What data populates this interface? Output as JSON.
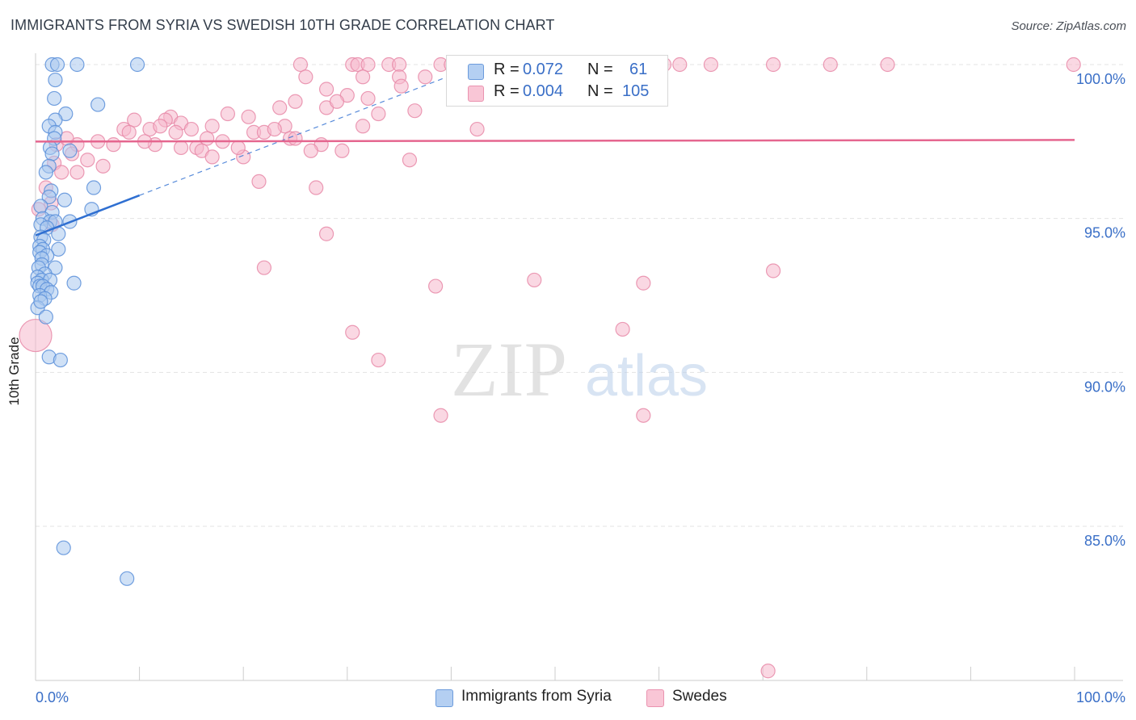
{
  "title": "IMMIGRANTS FROM SYRIA VS SWEDISH 10TH GRADE CORRELATION CHART",
  "source": "Source: ZipAtlas.com",
  "watermark": {
    "zip": "ZIP",
    "atlas": "atlas"
  },
  "legend": {
    "rows": [
      {
        "r_label": "R =",
        "r_value": "0.072",
        "n_label": "N =",
        "n_value": "61"
      },
      {
        "r_label": "R =",
        "r_value": "0.004",
        "n_label": "N =",
        "n_value": "105"
      }
    ]
  },
  "bottom_legend": {
    "syria": "Immigrants from Syria",
    "swedes": "Swedes"
  },
  "colors": {
    "syria_fill": "#a9c8ef",
    "syria_stroke": "#5b8fd9",
    "syria_line": "#2f6fd1",
    "swedes_fill": "#f6b8cc",
    "swedes_stroke": "#e889a8",
    "swedes_line": "#e5668f",
    "tick_label": "#3a6fc7",
    "grid": "#e3e3e3"
  },
  "chart_data": {
    "type": "scatter",
    "title": "IMMIGRANTS FROM SYRIA VS SWEDISH 10TH GRADE CORRELATION CHART",
    "xlabel": "",
    "ylabel": "10th Grade",
    "xlim": [
      0,
      100
    ],
    "ylim": [
      80.3,
      100.8
    ],
    "x_tick_labels": [
      "0.0%",
      "100.0%"
    ],
    "y_ticks": [
      85.0,
      90.0,
      95.0,
      100.0
    ],
    "y_tick_labels": [
      "85.0%",
      "90.0%",
      "95.0%",
      "100.0%"
    ],
    "grid": true,
    "series": [
      {
        "name": "Immigrants from Syria",
        "r": 0.072,
        "n": 61,
        "trend": {
          "x": [
            0.0,
            10.0
          ],
          "y": [
            94.45,
            95.75
          ],
          "dashed_to": [
            40.0,
            99.65
          ]
        },
        "points": [
          [
            1.6,
            100.0
          ],
          [
            2.1,
            100.0
          ],
          [
            4.0,
            100.0
          ],
          [
            9.8,
            100.0
          ],
          [
            1.9,
            99.5
          ],
          [
            1.8,
            98.9
          ],
          [
            6.0,
            98.7
          ],
          [
            2.9,
            98.4
          ],
          [
            1.9,
            98.2
          ],
          [
            1.3,
            98.0
          ],
          [
            1.9,
            97.8
          ],
          [
            1.8,
            97.6
          ],
          [
            1.4,
            97.3
          ],
          [
            1.6,
            97.1
          ],
          [
            3.3,
            97.2
          ],
          [
            1.3,
            96.7
          ],
          [
            1.0,
            96.5
          ],
          [
            5.6,
            96.0
          ],
          [
            1.5,
            95.9
          ],
          [
            1.3,
            95.7
          ],
          [
            2.8,
            95.6
          ],
          [
            0.5,
            95.4
          ],
          [
            5.4,
            95.3
          ],
          [
            1.6,
            95.2
          ],
          [
            0.7,
            95.0
          ],
          [
            1.4,
            94.9
          ],
          [
            1.9,
            94.9
          ],
          [
            3.3,
            94.9
          ],
          [
            0.5,
            94.8
          ],
          [
            1.1,
            94.7
          ],
          [
            2.2,
            94.5
          ],
          [
            0.5,
            94.4
          ],
          [
            0.8,
            94.3
          ],
          [
            0.4,
            94.1
          ],
          [
            0.7,
            94.0
          ],
          [
            2.2,
            94.0
          ],
          [
            0.4,
            93.9
          ],
          [
            1.1,
            93.8
          ],
          [
            0.6,
            93.7
          ],
          [
            0.6,
            93.5
          ],
          [
            0.3,
            93.4
          ],
          [
            1.9,
            93.4
          ],
          [
            0.9,
            93.2
          ],
          [
            0.2,
            93.1
          ],
          [
            0.6,
            93.0
          ],
          [
            1.4,
            93.0
          ],
          [
            3.7,
            92.9
          ],
          [
            0.2,
            92.9
          ],
          [
            0.4,
            92.8
          ],
          [
            0.7,
            92.8
          ],
          [
            1.1,
            92.7
          ],
          [
            1.5,
            92.6
          ],
          [
            0.4,
            92.5
          ],
          [
            0.9,
            92.4
          ],
          [
            0.2,
            92.1
          ],
          [
            1.0,
            91.8
          ],
          [
            1.3,
            90.5
          ],
          [
            2.4,
            90.4
          ],
          [
            2.7,
            84.3
          ],
          [
            8.8,
            83.3
          ],
          [
            0.5,
            92.3
          ]
        ]
      },
      {
        "name": "Swedes",
        "r": 0.004,
        "n": 105,
        "trend": {
          "x": [
            0.0,
            100.0
          ],
          "y": [
            97.5,
            97.55
          ]
        },
        "points": [
          [
            25.5,
            100.0
          ],
          [
            30.5,
            100.0
          ],
          [
            31.0,
            100.0
          ],
          [
            32.0,
            100.0
          ],
          [
            34.0,
            100.0
          ],
          [
            35.0,
            100.0
          ],
          [
            39.0,
            100.0
          ],
          [
            40.0,
            100.0
          ],
          [
            42.0,
            100.0
          ],
          [
            44.0,
            100.0
          ],
          [
            46.0,
            100.0
          ],
          [
            47.0,
            100.0
          ],
          [
            49.0,
            100.0
          ],
          [
            51.0,
            100.0
          ],
          [
            53.5,
            100.0
          ],
          [
            56.0,
            100.0
          ],
          [
            58.0,
            100.0
          ],
          [
            60.5,
            100.0
          ],
          [
            62.0,
            100.0
          ],
          [
            65.0,
            100.0
          ],
          [
            71.0,
            100.0
          ],
          [
            76.5,
            100.0
          ],
          [
            82.0,
            100.0
          ],
          [
            99.9,
            100.0
          ],
          [
            26.0,
            99.6
          ],
          [
            31.5,
            99.6
          ],
          [
            35.0,
            99.6
          ],
          [
            37.5,
            99.6
          ],
          [
            40.8,
            99.6
          ],
          [
            35.2,
            99.3
          ],
          [
            28.0,
            99.2
          ],
          [
            30.0,
            99.0
          ],
          [
            32.0,
            98.9
          ],
          [
            44.0,
            98.9
          ],
          [
            25.0,
            98.8
          ],
          [
            23.5,
            98.6
          ],
          [
            28.0,
            98.6
          ],
          [
            33.0,
            98.4
          ],
          [
            18.5,
            98.4
          ],
          [
            13.0,
            98.3
          ],
          [
            9.5,
            98.2
          ],
          [
            12.5,
            98.2
          ],
          [
            14.0,
            98.1
          ],
          [
            17.0,
            98.0
          ],
          [
            24.0,
            98.0
          ],
          [
            31.5,
            98.0
          ],
          [
            15.0,
            97.9
          ],
          [
            8.5,
            97.9
          ],
          [
            11.0,
            97.9
          ],
          [
            21.0,
            97.8
          ],
          [
            22.0,
            97.8
          ],
          [
            42.5,
            97.9
          ],
          [
            13.5,
            97.8
          ],
          [
            24.5,
            97.6
          ],
          [
            25.0,
            97.6
          ],
          [
            16.5,
            97.6
          ],
          [
            18.0,
            97.5
          ],
          [
            7.5,
            97.4
          ],
          [
            6.0,
            97.5
          ],
          [
            11.5,
            97.4
          ],
          [
            14.0,
            97.3
          ],
          [
            15.5,
            97.3
          ],
          [
            16.0,
            97.2
          ],
          [
            4.0,
            97.4
          ],
          [
            27.5,
            97.4
          ],
          [
            29.5,
            97.2
          ],
          [
            26.5,
            97.2
          ],
          [
            2.0,
            97.4
          ],
          [
            3.5,
            97.1
          ],
          [
            17.0,
            97.0
          ],
          [
            20.0,
            97.0
          ],
          [
            36.0,
            96.9
          ],
          [
            5.0,
            96.9
          ],
          [
            1.8,
            96.8
          ],
          [
            2.5,
            96.5
          ],
          [
            6.5,
            96.7
          ],
          [
            4.0,
            96.5
          ],
          [
            21.5,
            96.2
          ],
          [
            27.0,
            96.0
          ],
          [
            1.0,
            96.0
          ],
          [
            1.5,
            95.5
          ],
          [
            0.3,
            95.3
          ],
          [
            1.6,
            94.8
          ],
          [
            28.0,
            94.5
          ],
          [
            22.0,
            93.4
          ],
          [
            38.5,
            92.8
          ],
          [
            48.0,
            93.0
          ],
          [
            58.5,
            92.9
          ],
          [
            71.0,
            93.3
          ],
          [
            30.5,
            91.3
          ],
          [
            56.5,
            91.4
          ],
          [
            33.0,
            90.4
          ],
          [
            39.0,
            88.6
          ],
          [
            58.5,
            88.6
          ],
          [
            70.5,
            80.3
          ],
          [
            0.0,
            91.2
          ],
          [
            3.0,
            97.6
          ],
          [
            9.0,
            97.8
          ],
          [
            10.5,
            97.5
          ],
          [
            23.0,
            97.9
          ],
          [
            19.5,
            97.3
          ],
          [
            12.0,
            98.0
          ],
          [
            20.5,
            98.3
          ],
          [
            29.0,
            98.8
          ],
          [
            36.5,
            98.5
          ]
        ]
      }
    ]
  }
}
